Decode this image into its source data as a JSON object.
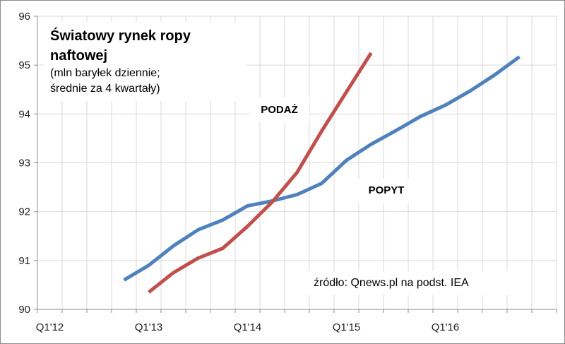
{
  "chart_data": {
    "type": "line",
    "title": [
      "Światowy rynek ropy",
      "naftowej"
    ],
    "subtitle": [
      "(mln baryłek dziennie;",
      "średnie za 4 kwartały)"
    ],
    "source": "źródło: Qnews.pl na podst. IEA",
    "x_tick_labels": [
      {
        "label": "Q1'12",
        "index": 0
      },
      {
        "label": "Q1'13",
        "index": 4
      },
      {
        "label": "Q1'14",
        "index": 8
      },
      {
        "label": "Q1'15",
        "index": 12
      },
      {
        "label": "Q1'16",
        "index": 16
      }
    ],
    "x_quarters": 21,
    "ylim": [
      90,
      96
    ],
    "yticks": [
      90,
      91,
      92,
      93,
      94,
      95,
      96
    ],
    "grid": true,
    "series": [
      {
        "name": "PODAŻ",
        "color": "#C0504D",
        "start_index": 4,
        "values": [
          90.35,
          90.75,
          91.05,
          91.25,
          91.7,
          92.2,
          92.8,
          93.65,
          94.45,
          95.25
        ]
      },
      {
        "name": "POPYT",
        "color": "#4F81BD",
        "start_index": 3,
        "values": [
          90.6,
          90.9,
          91.3,
          91.63,
          91.83,
          92.12,
          92.22,
          92.35,
          92.58,
          93.05,
          93.38,
          93.66,
          93.95,
          94.18,
          94.47,
          94.8,
          95.17
        ]
      }
    ],
    "label_supply": "PODAŻ",
    "label_demand": "POPYT"
  }
}
